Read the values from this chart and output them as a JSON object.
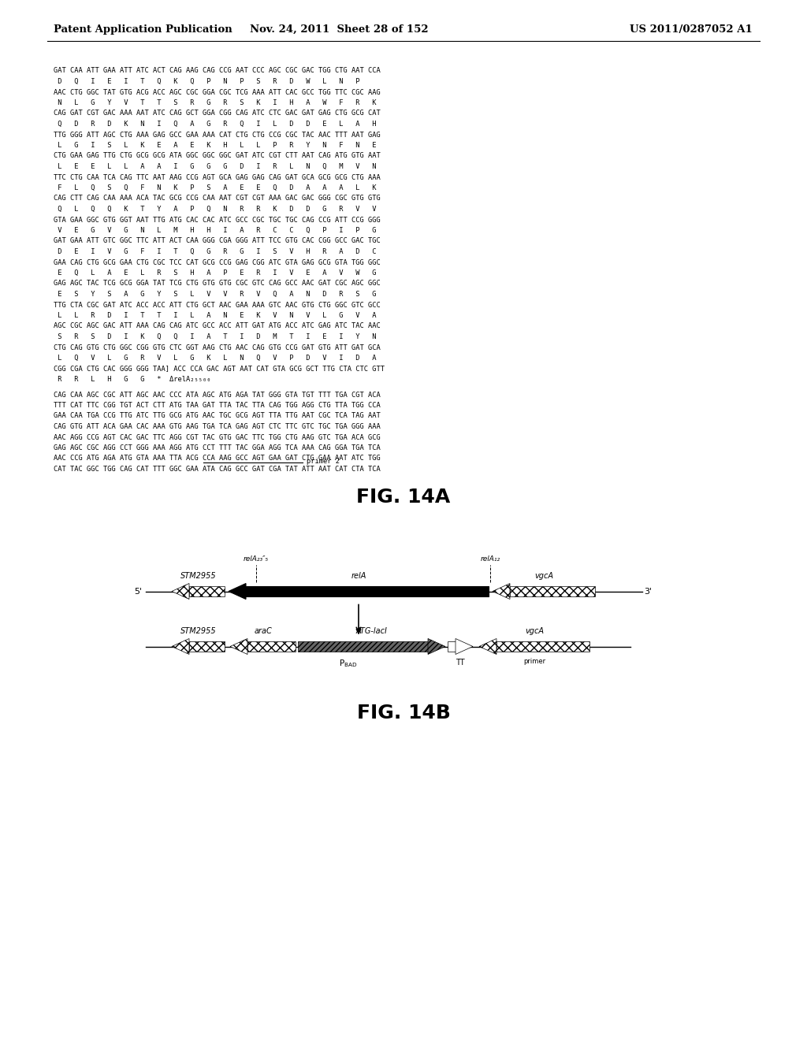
{
  "header_left": "Patent Application Publication",
  "header_mid": "Nov. 24, 2011  Sheet 28 of 152",
  "header_right": "US 2011/0287052 A1",
  "fig14a_label": "FIG. 14A",
  "fig14b_label": "FIG. 14B",
  "sequence_text_lines": [
    "GAT CAA ATT GAA ATT ATC ACT CAG AAG CAG CCG AAT CCC AGC CGC GAC TGG CTG AAT CCA",
    " D   Q   I   E   I   T   Q   K   Q   P   N   P   S   R   D   W   L   N   P",
    "AAC CTG GGC TAT GTG ACG ACC AGC CGC GGA CGC TCG AAA ATT CAC GCC TGG TTC CGC AAG",
    " N   L   G   Y   V   T   T   S   R   G   R   S   K   I   H   A   W   F   R   K",
    "CAG GAT CGT GAC AAA AAT ATC CAG GCT GGA CGG CAG ATC CTC GAC GAT GAG CTG GCG CAT",
    " Q   D   R   D   K   N   I   Q   A   G   R   Q   I   L   D   D   E   L   A   H",
    "TTG GGG ATT AGC CTG AAA GAG GCC GAA AAA CAT CTG CTG CCG CGC TAC AAC TTT AAT GAG",
    " L   G   I   S   L   K   E   A   E   K   H   L   L   P   R   Y   N   F   N   E",
    "CTG GAA GAG TTG CTG GCG GCG ATA GGC GGC GGC GAT ATC CGT CTT AAT CAG ATG GTG AAT",
    " L   E   E   L   L   A   A   I   G   G   G   D   I   R   L   N   Q   M   V   N",
    "TTC CTG CAA TCA CAG TTC AAT AAG CCG AGT GCA GAG GAG CAG GAT GCA GCG GCG CTG AAA",
    " F   L   Q   S   Q   F   N   K   P   S   A   E   E   Q   D   A   A   A   L   K",
    "CAG CTT CAG CAA AAA ACA TAC GCG CCG CAA AAT CGT CGT AAA GAC GAC GGG CGC GTG GTG",
    " Q   L   Q   Q   K   T   Y   A   P   Q   N   R   R   K   D   D   G   R   V   V",
    "GTA GAA GGC GTG GGT AAT TTG ATG CAC CAC ATC GCC CGC TGC TGC CAG CCG ATT CCG GGG",
    " V   E   G   V   G   N   L   M   H   H   I   A   R   C   C   Q   P   I   P   G",
    "GAT GAA ATT GTC GGC TTC ATT ACT CAA GGG CGA GGG ATT TCC GTG CAC CGG GCC GAC TGC",
    " D   E   I   V   G   F   I   T   Q   G   R   G   I   S   V   H   R   A   D   C",
    "GAA CAG CTG GCG GAA CTG CGC TCC CAT GCG CCG GAG CGG ATC GTA GAG GCG GTA TGG GGC",
    " E   Q   L   A   E   L   R   S   H   A   P   E   R   I   V   E   A   V   W   G",
    "GAG AGC TAC TCG GCG GGA TAT TCG CTG GTG GTG CGC GTC CAG GCC AAC GAT CGC AGC GGC",
    " E   S   Y   S   A   G   Y   S   L   V   V   R   V   Q   A   N   D   R   S   G",
    "TTG CTA CGC GAT ATC ACC ACC ATT CTG GCT AAC GAA AAA GTC AAC GTG CTG GGC GTC GCC",
    " L   L   R   D   I   T   T   I   L   A   N   E   K   V   N   V   L   G   V   A",
    "AGC CGC AGC GAC ATT AAA CAG CAG ATC GCC ACC ATT GAT ATG ACC ATC GAG ATC TAC AAC",
    " S   R   S   D   I   K   Q   Q   I   A   T   I   D   M   T   I   E   I   Y   N",
    "CTG CAG GTG CTG GGC CGG GTG CTC GGT AAG CTG AAC CAG GTG CCG GAT GTG ATT GAT GCA",
    " L   Q   V   L   G   R   V   L   G   K   L   N   Q   V   P   D   V   I   D   A",
    "CGG CGA CTG CAC GGG GGG TAA] ACC CCA GAC AGT AAT CAT GTA GCG GCT TTG CTA CTC GTT",
    " R   R   L   H   G   G   *  ΔrelA₂₅₅₀₀"
  ],
  "sequence_text_lines2": [
    "CAG CAA AGC CGC ATT AGC AAC CCC ATA AGC ATG AGA TAT GGG GTA TGT TTT TGA CGT ACA",
    "TTT CAT TTC CGG TGT ACT CTT ATG TAA GAT TTA TAC TTA CAG TGG AGG CTG TTA TGG CCA",
    "GAA CAA TGA CCG TTG ATC TTG GCG ATG AAC TGC GCG AGT TTA TTG AAT CGC TCA TAG AAT",
    "CAG GTG ATT ACA GAA CAC AAA GTG AAG TGA TCA GAG AGT CTC TTC GTC TGC TGA GGG AAA",
    "AAC AGG CCG AGT CAC GAC TTC AGG CGT TAC GTG GAC TTC TGG CTG AAG GTC TGA ACA GCG",
    "GAG AGC CGC AGG CCT GGG AAA AGG ATG CCT TTT TAC GGA AGG TCA AAA CAG GGA TGA TCA",
    "AAC CCG ATG AGA ATG GTA AAA TTA ACG CCA AAG GCC AGT GAA GAT CTG GAA AAT ATC TGG",
    "CAT TAC GGC TGG CAG CAT TTT GGC GAA ATA CAG GCC GAT CGA TAT ATT AAT CAT CTA TCA"
  ],
  "primer2_label": "primer 2",
  "background_color": "#ffffff",
  "text_color": "#000000",
  "font_size_header": 9.5,
  "font_size_sequence": 6.3,
  "font_size_fig_label": 18
}
